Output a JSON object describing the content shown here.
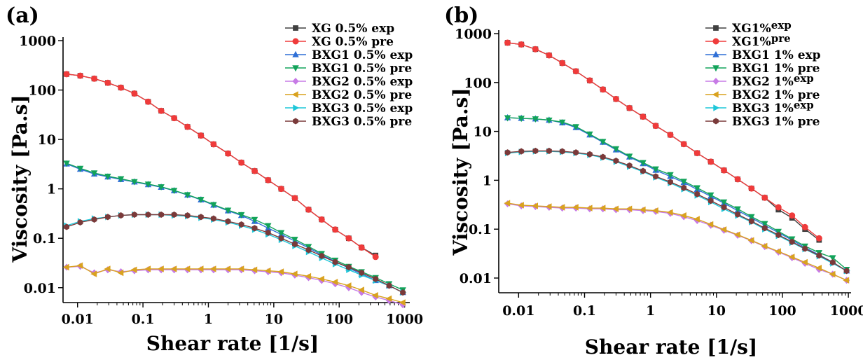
{
  "colors": {
    "XG_exp": "#404040",
    "XG_pre": "#ef3b3b",
    "BXG1_exp": "#2f6fd6",
    "BXG1_pre": "#12a35a",
    "BXG2_exp": "#c77be6",
    "BXG2_pre": "#d9a21f",
    "BXG3_exp": "#1fc7d9",
    "BXG3_pre": "#7a3a3a"
  },
  "chart_data": [
    {
      "type": "line",
      "panel_label": "(a)",
      "xlabel": "Shear rate [1/s]",
      "ylabel": "Viscosity [Pa.s]",
      "xscale": "log",
      "yscale": "log",
      "xlim": [
        0.006,
        1200
      ],
      "ylim": [
        0.005,
        1000
      ],
      "xticks": [
        0.01,
        0.1,
        1,
        10,
        100,
        1000
      ],
      "xtick_labels": [
        "0.01",
        "0.1",
        "1",
        "10",
        "100",
        "1000"
      ],
      "yticks": [
        0.01,
        0.1,
        1,
        10,
        100,
        1000
      ],
      "ytick_labels": [
        "0.01",
        "0.1",
        "1",
        "10",
        "100",
        "1000"
      ],
      "legend": "top-right",
      "grid": false,
      "series": [
        {
          "name": "XG 0.5% exp",
          "color_key": "XG_exp",
          "marker": "square",
          "x": [
            0.0068,
            0.011,
            0.018,
            0.029,
            0.046,
            0.074,
            0.12,
            0.19,
            0.3,
            0.48,
            0.77,
            1.2,
            2,
            3.2,
            5.1,
            8.2,
            13,
            21,
            34,
            54,
            87,
            140,
            220,
            360
          ],
          "y": [
            210,
            195,
            170,
            140,
            112,
            85,
            58,
            38,
            27,
            18,
            12,
            8,
            5.2,
            3.4,
            2.3,
            1.5,
            1.0,
            0.65,
            0.38,
            0.24,
            0.15,
            0.1,
            0.065,
            0.045
          ]
        },
        {
          "name": "XG 0.5% pre",
          "color_key": "XG_pre",
          "marker": "circle",
          "x": [
            0.0068,
            0.011,
            0.018,
            0.029,
            0.046,
            0.074,
            0.12,
            0.19,
            0.3,
            0.48,
            0.77,
            1.2,
            2,
            3.2,
            5.1,
            8.2,
            13,
            21,
            34,
            54,
            87,
            140,
            220,
            360
          ],
          "y": [
            210,
            195,
            170,
            140,
            112,
            85,
            58,
            38,
            27,
            18,
            12,
            8,
            5.2,
            3.4,
            2.3,
            1.5,
            1.0,
            0.65,
            0.38,
            0.24,
            0.15,
            0.1,
            0.065,
            0.042
          ]
        },
        {
          "name": "BXG1 0.5% exp",
          "color_key": "BXG1_exp",
          "marker": "triangle-up",
          "x": [
            0.0068,
            0.011,
            0.018,
            0.029,
            0.046,
            0.074,
            0.12,
            0.19,
            0.3,
            0.48,
            0.77,
            1.2,
            2,
            3.2,
            5.1,
            8.2,
            13,
            21,
            34,
            54,
            87,
            140,
            220,
            360,
            580,
            940
          ],
          "y": [
            3.2,
            2.5,
            2.0,
            1.75,
            1.55,
            1.38,
            1.22,
            1.08,
            0.92,
            0.75,
            0.6,
            0.47,
            0.36,
            0.29,
            0.22,
            0.16,
            0.12,
            0.088,
            0.064,
            0.046,
            0.034,
            0.025,
            0.019,
            0.014,
            0.011,
            0.008
          ]
        },
        {
          "name": "BXG1 0.5% pre",
          "color_key": "BXG1_pre",
          "marker": "triangle-down",
          "x": [
            0.0068,
            0.011,
            0.018,
            0.029,
            0.046,
            0.074,
            0.12,
            0.19,
            0.3,
            0.48,
            0.77,
            1.2,
            2,
            3.2,
            5.1,
            8.2,
            13,
            21,
            34,
            54,
            87,
            140,
            220,
            360,
            580,
            940
          ],
          "y": [
            3.3,
            2.6,
            2.1,
            1.8,
            1.6,
            1.4,
            1.25,
            1.1,
            0.93,
            0.76,
            0.61,
            0.48,
            0.37,
            0.3,
            0.24,
            0.18,
            0.13,
            0.095,
            0.068,
            0.049,
            0.036,
            0.027,
            0.021,
            0.016,
            0.012,
            0.009
          ]
        },
        {
          "name": "BXG2 0.5% exp",
          "color_key": "BXG2_exp",
          "marker": "diamond",
          "x": [
            0.0068,
            0.011,
            0.018,
            0.029,
            0.046,
            0.074,
            0.12,
            0.19,
            0.3,
            0.48,
            0.77,
            1.2,
            2,
            3.2,
            5.1,
            8.2,
            13,
            21,
            34,
            54,
            87,
            140,
            220,
            360,
            580,
            940
          ],
          "y": [
            0.026,
            0.027,
            0.02,
            0.023,
            0.021,
            0.022,
            0.023,
            0.023,
            0.023,
            0.023,
            0.023,
            0.023,
            0.023,
            0.023,
            0.022,
            0.021,
            0.02,
            0.018,
            0.016,
            0.014,
            0.012,
            0.01,
            0.008,
            0.0065,
            0.0055,
            0.0045
          ]
        },
        {
          "name": "BXG2 0.5% pre",
          "color_key": "BXG2_pre",
          "marker": "triangle-left",
          "x": [
            0.0068,
            0.011,
            0.018,
            0.029,
            0.046,
            0.074,
            0.12,
            0.19,
            0.3,
            0.48,
            0.77,
            1.2,
            2,
            3.2,
            5.1,
            8.2,
            13,
            21,
            34,
            54,
            87,
            140,
            220,
            360,
            580,
            940
          ],
          "y": [
            0.026,
            0.028,
            0.019,
            0.024,
            0.02,
            0.023,
            0.024,
            0.024,
            0.024,
            0.024,
            0.024,
            0.024,
            0.024,
            0.024,
            0.023,
            0.022,
            0.021,
            0.019,
            0.017,
            0.015,
            0.013,
            0.011,
            0.009,
            0.007,
            0.006,
            0.005
          ]
        },
        {
          "name": "BXG3 0.5% exp",
          "color_key": "BXG3_exp",
          "marker": "triangle-right",
          "x": [
            0.0068,
            0.011,
            0.018,
            0.029,
            0.046,
            0.074,
            0.12,
            0.19,
            0.3,
            0.48,
            0.77,
            1.2,
            2,
            3.2,
            5.1,
            8.2,
            13,
            21,
            34,
            54,
            87,
            140,
            220,
            360,
            580,
            940
          ],
          "y": [
            0.18,
            0.22,
            0.25,
            0.27,
            0.29,
            0.3,
            0.3,
            0.3,
            0.29,
            0.28,
            0.26,
            0.24,
            0.21,
            0.18,
            0.15,
            0.12,
            0.093,
            0.07,
            0.053,
            0.04,
            0.03,
            0.023,
            0.018,
            0.014,
            0.011,
            0.008
          ]
        },
        {
          "name": "BXG3 0.5% pre",
          "color_key": "BXG3_pre",
          "marker": "hexagon",
          "x": [
            0.0068,
            0.011,
            0.018,
            0.029,
            0.046,
            0.074,
            0.12,
            0.19,
            0.3,
            0.48,
            0.77,
            1.2,
            2,
            3.2,
            5.1,
            8.2,
            13,
            21,
            34,
            54,
            87,
            140,
            220,
            360,
            580,
            940
          ],
          "y": [
            0.17,
            0.21,
            0.24,
            0.27,
            0.29,
            0.3,
            0.3,
            0.3,
            0.3,
            0.29,
            0.27,
            0.25,
            0.22,
            0.19,
            0.16,
            0.13,
            0.1,
            0.076,
            0.058,
            0.044,
            0.033,
            0.026,
            0.02,
            0.015,
            0.011,
            0.008
          ]
        }
      ]
    },
    {
      "type": "line",
      "panel_label": "(b)",
      "xlabel": "Shear rate [1/s]",
      "ylabel": "Viscosity [Pa.s]",
      "xscale": "log",
      "yscale": "log",
      "xlim": [
        0.005,
        1100
      ],
      "ylim": [
        0.005,
        1000
      ],
      "xticks": [
        0.01,
        0.1,
        1,
        10,
        100,
        1000
      ],
      "xtick_labels": [
        "0.01",
        "0.1",
        "1",
        "10",
        "100",
        "1000"
      ],
      "yticks": [
        0.01,
        0.1,
        1,
        10,
        100,
        1000
      ],
      "ytick_labels": [
        "0.01",
        "0.1",
        "1",
        "10",
        "100",
        "1000"
      ],
      "legend": "top-right",
      "grid": false,
      "series": [
        {
          "name": "XG1%exp",
          "name_main": "XG1%",
          "name_sup": "exp",
          "color_key": "XG_exp",
          "marker": "square",
          "x": [
            0.0068,
            0.011,
            0.018,
            0.029,
            0.046,
            0.074,
            0.12,
            0.19,
            0.3,
            0.48,
            0.77,
            1.2,
            2,
            3.2,
            5.1,
            8.2,
            13,
            21,
            34,
            54,
            87,
            140,
            220,
            360
          ],
          "y": [
            650,
            600,
            480,
            360,
            250,
            170,
            110,
            72,
            46,
            30,
            20,
            13,
            8.5,
            5.5,
            3.6,
            2.4,
            1.6,
            1.05,
            0.68,
            0.44,
            0.25,
            0.17,
            0.1,
            0.06
          ]
        },
        {
          "name": "XG1%pre",
          "name_main": "XG1%",
          "name_sup": "pre",
          "color_key": "XG_pre",
          "marker": "circle",
          "x": [
            0.0068,
            0.011,
            0.018,
            0.029,
            0.046,
            0.074,
            0.12,
            0.19,
            0.3,
            0.48,
            0.77,
            1.2,
            2,
            3.2,
            5.1,
            8.2,
            13,
            21,
            34,
            54,
            87,
            140,
            220,
            360
          ],
          "y": [
            650,
            600,
            480,
            360,
            250,
            170,
            110,
            72,
            46,
            30,
            20,
            13,
            8.5,
            5.5,
            3.6,
            2.4,
            1.6,
            1.05,
            0.68,
            0.44,
            0.28,
            0.19,
            0.11,
            0.065
          ]
        },
        {
          "name": "BXG1 1% exp",
          "color_key": "BXG1_exp",
          "marker": "triangle-up",
          "x": [
            0.0068,
            0.011,
            0.018,
            0.029,
            0.046,
            0.074,
            0.12,
            0.19,
            0.3,
            0.48,
            0.77,
            1.2,
            2,
            3.2,
            5.1,
            8.2,
            13,
            21,
            34,
            54,
            87,
            140,
            220,
            360,
            580,
            940
          ],
          "y": [
            19,
            18.5,
            18,
            17,
            15,
            12,
            8.5,
            6,
            4.2,
            3.0,
            2.2,
            1.6,
            1.2,
            0.9,
            0.65,
            0.47,
            0.34,
            0.24,
            0.17,
            0.12,
            0.085,
            0.06,
            0.042,
            0.03,
            0.021,
            0.014
          ]
        },
        {
          "name": "BXG1 1% pre",
          "color_key": "BXG1_pre",
          "marker": "triangle-down",
          "x": [
            0.0068,
            0.011,
            0.018,
            0.029,
            0.046,
            0.074,
            0.12,
            0.19,
            0.3,
            0.48,
            0.77,
            1.2,
            2,
            3.2,
            5.1,
            8.2,
            13,
            21,
            34,
            54,
            87,
            140,
            220,
            360,
            580,
            940
          ],
          "y": [
            19,
            18.5,
            18,
            17,
            15.5,
            12.5,
            8.8,
            6.2,
            4.4,
            3.1,
            2.3,
            1.7,
            1.3,
            0.95,
            0.7,
            0.5,
            0.36,
            0.26,
            0.18,
            0.13,
            0.09,
            0.063,
            0.045,
            0.033,
            0.026,
            0.015
          ]
        },
        {
          "name": "BXG2 1%exp",
          "name_main": "BXG2 1%",
          "name_sup": "exp",
          "color_key": "BXG2_exp",
          "marker": "diamond",
          "x": [
            0.0068,
            0.011,
            0.018,
            0.029,
            0.046,
            0.074,
            0.12,
            0.19,
            0.3,
            0.48,
            0.77,
            1.2,
            2,
            3.2,
            5.1,
            8.2,
            13,
            21,
            34,
            54,
            87,
            140,
            220,
            360,
            580,
            940
          ],
          "y": [
            0.33,
            0.3,
            0.29,
            0.28,
            0.27,
            0.27,
            0.26,
            0.26,
            0.25,
            0.25,
            0.24,
            0.23,
            0.21,
            0.18,
            0.15,
            0.12,
            0.095,
            0.075,
            0.058,
            0.044,
            0.034,
            0.026,
            0.02,
            0.015,
            0.012,
            0.009
          ]
        },
        {
          "name": "BXG2 1% pre",
          "color_key": "BXG2_pre",
          "marker": "triangle-left",
          "x": [
            0.0068,
            0.011,
            0.018,
            0.029,
            0.046,
            0.074,
            0.12,
            0.19,
            0.3,
            0.48,
            0.77,
            1.2,
            2,
            3.2,
            5.1,
            8.2,
            13,
            21,
            34,
            54,
            87,
            140,
            220,
            360,
            580,
            940
          ],
          "y": [
            0.34,
            0.31,
            0.3,
            0.29,
            0.28,
            0.28,
            0.27,
            0.27,
            0.26,
            0.26,
            0.25,
            0.24,
            0.22,
            0.19,
            0.16,
            0.125,
            0.098,
            0.077,
            0.059,
            0.045,
            0.035,
            0.027,
            0.021,
            0.016,
            0.012,
            0.009
          ]
        },
        {
          "name": "BXG3 1%exp",
          "name_main": "BXG3 1%",
          "name_sup": "exp",
          "color_key": "BXG3_exp",
          "marker": "triangle-right",
          "x": [
            0.0068,
            0.011,
            0.018,
            0.029,
            0.046,
            0.074,
            0.12,
            0.19,
            0.3,
            0.48,
            0.77,
            1.2,
            2,
            3.2,
            5.1,
            8.2,
            13,
            21,
            34,
            54,
            87,
            140,
            220,
            360,
            580,
            940
          ],
          "y": [
            3.6,
            3.8,
            3.9,
            3.9,
            3.8,
            3.6,
            3.3,
            2.9,
            2.4,
            1.9,
            1.5,
            1.15,
            0.88,
            0.66,
            0.49,
            0.36,
            0.26,
            0.19,
            0.14,
            0.1,
            0.073,
            0.053,
            0.039,
            0.028,
            0.02,
            0.014
          ]
        },
        {
          "name": "BXG3 1% pre",
          "color_key": "BXG3_pre",
          "marker": "hexagon",
          "x": [
            0.0068,
            0.011,
            0.018,
            0.029,
            0.046,
            0.074,
            0.12,
            0.19,
            0.3,
            0.48,
            0.77,
            1.2,
            2,
            3.2,
            5.1,
            8.2,
            13,
            21,
            34,
            54,
            87,
            140,
            220,
            360,
            580,
            940
          ],
          "y": [
            3.7,
            3.9,
            4.0,
            4.0,
            3.9,
            3.7,
            3.4,
            3.0,
            2.5,
            2.0,
            1.55,
            1.2,
            0.92,
            0.7,
            0.52,
            0.38,
            0.28,
            0.2,
            0.145,
            0.105,
            0.076,
            0.055,
            0.04,
            0.029,
            0.021,
            0.014
          ]
        }
      ]
    }
  ]
}
